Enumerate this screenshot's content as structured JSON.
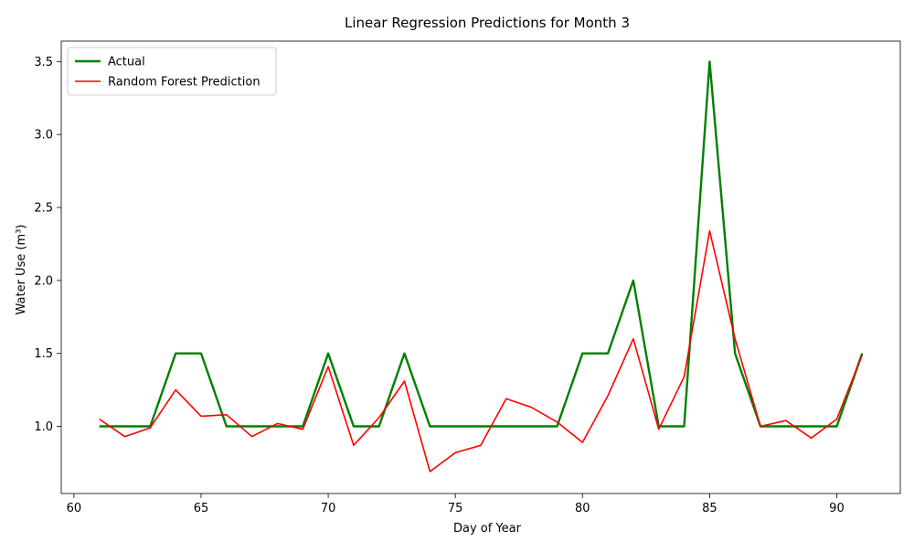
{
  "chart_data": {
    "type": "line",
    "title": "Linear Regression Predictions for Month 3",
    "xlabel": "Day of Year",
    "ylabel": "Water Use (m³)",
    "xlim": [
      59.5,
      92.5
    ],
    "ylim": [
      0.54,
      3.64
    ],
    "xticks": [
      60,
      65,
      70,
      75,
      80,
      85,
      90
    ],
    "xtick_labels": [
      "60",
      "65",
      "70",
      "75",
      "80",
      "85",
      "90"
    ],
    "yticks": [
      1.0,
      1.5,
      2.0,
      2.5,
      3.0,
      3.5
    ],
    "ytick_labels": [
      "1.0",
      "1.5",
      "2.0",
      "2.5",
      "3.0",
      "3.5"
    ],
    "grid": false,
    "legend_position": "top-left",
    "x": [
      61,
      62,
      63,
      64,
      65,
      66,
      67,
      68,
      69,
      70,
      71,
      72,
      73,
      74,
      75,
      76,
      77,
      78,
      79,
      80,
      81,
      82,
      83,
      84,
      85,
      86,
      87,
      88,
      89,
      90,
      91
    ],
    "series": [
      {
        "name": "Actual",
        "color": "#008000",
        "values": [
          1.0,
          1.0,
          1.0,
          1.5,
          1.5,
          1.0,
          1.0,
          1.0,
          1.0,
          1.5,
          1.0,
          1.0,
          1.5,
          1.0,
          1.0,
          1.0,
          1.0,
          1.0,
          1.0,
          1.5,
          1.5,
          2.0,
          1.0,
          1.0,
          3.5,
          1.5,
          1.0,
          1.0,
          1.0,
          1.0,
          1.5
        ]
      },
      {
        "name": "Random Forest Prediction",
        "color": "#ff0000",
        "values": [
          1.05,
          0.93,
          0.99,
          1.25,
          1.07,
          1.08,
          0.93,
          1.02,
          0.98,
          1.41,
          0.87,
          1.06,
          1.31,
          0.69,
          0.82,
          0.87,
          1.19,
          1.13,
          1.03,
          0.89,
          1.21,
          1.6,
          0.98,
          1.34,
          2.34,
          1.6,
          1.0,
          1.04,
          0.92,
          1.05,
          1.49
        ]
      }
    ]
  }
}
